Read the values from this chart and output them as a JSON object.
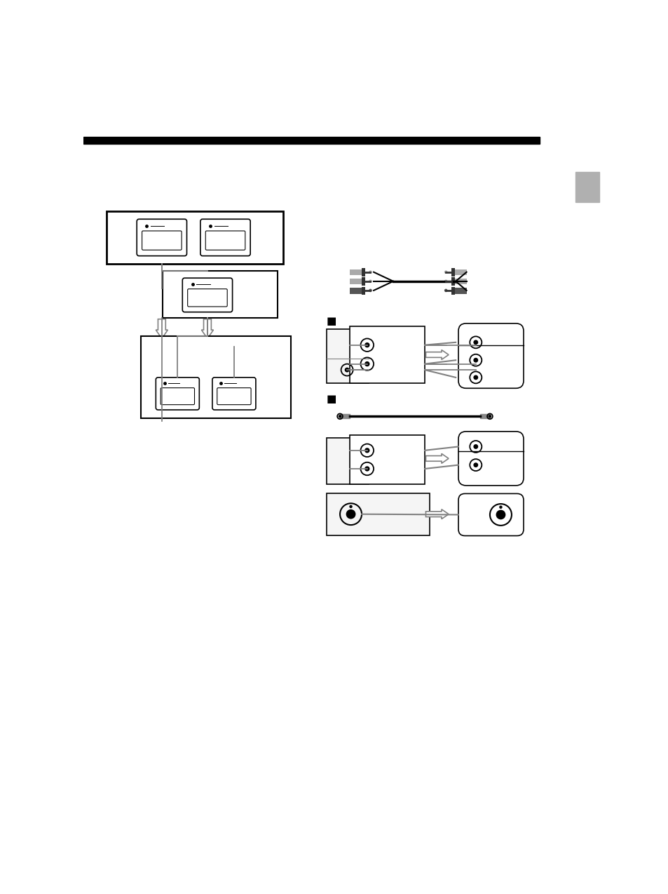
{
  "bg_color": "#ffffff",
  "top_bar_color": "#000000",
  "sidebar_color": "#b0b0b0",
  "line_color": "#000000",
  "gray_line": "#888888",
  "scart_fill": "#ffffff",
  "panel_fill": "#ffffff",
  "rca_fill": "#ffffff"
}
